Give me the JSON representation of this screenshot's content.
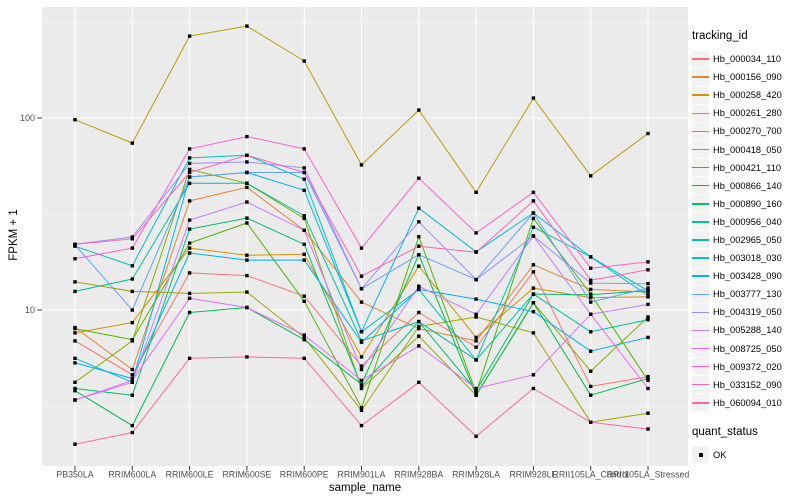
{
  "figure": {
    "panel_bg": "#EBEBEB",
    "grid_color": "#FFFFFF",
    "tick_color": "#333333",
    "axis_text_color": "#4D4D4D",
    "marker_color": "#000000"
  },
  "legend": {
    "title": "tracking_id"
  },
  "legend2": {
    "title": "quant_status",
    "items": [
      {
        "label": "OK",
        "marker": "black-square"
      }
    ]
  },
  "chart_data": {
    "type": "line",
    "title": "",
    "xlabel": "sample_name",
    "ylabel": "FPKM + 1",
    "y_scale": "log10",
    "y_ticks": [
      10,
      100
    ],
    "y_minor_ticks": [
      3.162,
      31.623,
      316.23
    ],
    "ylim": [
      1.55,
      385
    ],
    "grid": true,
    "legend_position": "right",
    "marker": {
      "shape": "square",
      "color": "#000000"
    },
    "categories": [
      "PB350LA",
      "RRIM600LA",
      "RRIM600LE",
      "RRIM600SE",
      "RRIM600PE",
      "RRIM901LA",
      "RRIM928BA",
      "RRIM928LA",
      "RRIM928LE",
      "RRII105LA_Control",
      "RRII105LA_Stressed"
    ],
    "series": [
      {
        "name": "Hb_000034_110",
        "color": "#F8766D",
        "values": [
          6.9,
          4.6,
          15.6,
          15.1,
          11.8,
          5.1,
          9.7,
          6.4,
          15.8,
          4.0,
          4.5
        ]
      },
      {
        "name": "Hb_000156_090",
        "color": "#EA8331",
        "values": [
          8.1,
          4.9,
          37.0,
          43.5,
          26.0,
          11.0,
          8.0,
          6.9,
          17.2,
          12.8,
          12.4
        ]
      },
      {
        "name": "Hb_000258_420",
        "color": "#D89000",
        "values": [
          7.6,
          8.6,
          21.0,
          19.3,
          19.5,
          5.7,
          16.9,
          7.2,
          13.0,
          11.6,
          11.7
        ]
      },
      {
        "name": "Hb_000261_280",
        "color": "#C09B00",
        "values": [
          98,
          74,
          267,
          301,
          198,
          57,
          110,
          41,
          127,
          50,
          83
        ]
      },
      {
        "name": "Hb_000270_700",
        "color": "#A3A500",
        "values": [
          14.0,
          12.5,
          12.2,
          12.4,
          7.2,
          3.0,
          8.2,
          9.2,
          7.6,
          2.6,
          2.9
        ]
      },
      {
        "name": "Hb_000418_050",
        "color": "#85AD00",
        "values": [
          4.2,
          6.9,
          54.0,
          45.7,
          30.0,
          3.9,
          7.3,
          3.6,
          10.9,
          4.8,
          9.2
        ]
      },
      {
        "name": "Hb_000421_110",
        "color": "#52B400",
        "values": [
          8.0,
          7.0,
          22.3,
          28.4,
          11.1,
          3.1,
          24.1,
          3.7,
          30.0,
          12.1,
          4.3
        ]
      },
      {
        "name": "Hb_000866_140",
        "color": "#00BB4C",
        "values": [
          3.8,
          2.5,
          9.7,
          10.3,
          7.0,
          4.1,
          19.4,
          3.6,
          10.9,
          3.6,
          4.4
        ]
      },
      {
        "name": "Hb_000890_160",
        "color": "#00BE70",
        "values": [
          3.9,
          3.6,
          26.4,
          30.1,
          22.0,
          4.0,
          8.7,
          3.8,
          12.1,
          12.0,
          12.6
        ]
      },
      {
        "name": "Hb_000956_040",
        "color": "#00C19C",
        "values": [
          12.5,
          14.5,
          45.7,
          45.7,
          31.0,
          6.9,
          8.7,
          5.5,
          12.1,
          7.7,
          8.9
        ]
      },
      {
        "name": "Hb_002965_050",
        "color": "#00C0BE",
        "values": [
          21.5,
          17.0,
          62.0,
          64.0,
          48.0,
          7.7,
          12.8,
          5.5,
          27.0,
          18.9,
          12.6
        ]
      },
      {
        "name": "Hb_003018_030",
        "color": "#00BADE",
        "values": [
          5.6,
          4.2,
          49.3,
          52.0,
          42.0,
          7.7,
          33.9,
          20.1,
          32.0,
          18.9,
          11.9
        ]
      },
      {
        "name": "Hb_003428_090",
        "color": "#00B2F3",
        "values": [
          5.3,
          4.4,
          19.8,
          18.2,
          18.2,
          6.8,
          12.8,
          11.4,
          9.8,
          6.1,
          7.2
        ]
      },
      {
        "name": "Hb_003777_130",
        "color": "#61A2FF",
        "values": [
          21.8,
          10.0,
          49.3,
          52.0,
          52.0,
          12.9,
          19.4,
          14.4,
          32.0,
          11.0,
          13.0
        ]
      },
      {
        "name": "Hb_004319_050",
        "color": "#9C8DFF",
        "values": [
          22.0,
          24.0,
          58.0,
          59.0,
          55.0,
          12.9,
          28.8,
          14.4,
          24.3,
          13.8,
          13.7
        ]
      },
      {
        "name": "Hb_005288_140",
        "color": "#C77CFF",
        "values": [
          3.4,
          4.2,
          29.4,
          36.5,
          26.0,
          4.9,
          13.3,
          9.5,
          24.3,
          9.5,
          10.7
        ]
      },
      {
        "name": "Hb_008725_050",
        "color": "#E86DF6",
        "values": [
          3.4,
          4.3,
          11.5,
          10.3,
          7.4,
          4.3,
          6.5,
          3.9,
          4.6,
          9.5,
          3.9
        ]
      },
      {
        "name": "Hb_009372_020",
        "color": "#FB61D7",
        "values": [
          18.5,
          21.0,
          69.0,
          80.0,
          69.0,
          21.0,
          48.6,
          25.2,
          41.0,
          16.5,
          17.8
        ]
      },
      {
        "name": "Hb_033152_090",
        "color": "#FF63B6",
        "values": [
          22.0,
          23.5,
          52.0,
          64.0,
          52.0,
          15.0,
          21.5,
          20.0,
          37.0,
          14.3,
          16.2
        ]
      },
      {
        "name": "Hb_060094_010",
        "color": "#FF689F",
        "values": [
          2.0,
          2.3,
          5.6,
          5.7,
          5.6,
          2.5,
          4.2,
          2.2,
          3.9,
          2.6,
          2.4
        ]
      }
    ]
  }
}
